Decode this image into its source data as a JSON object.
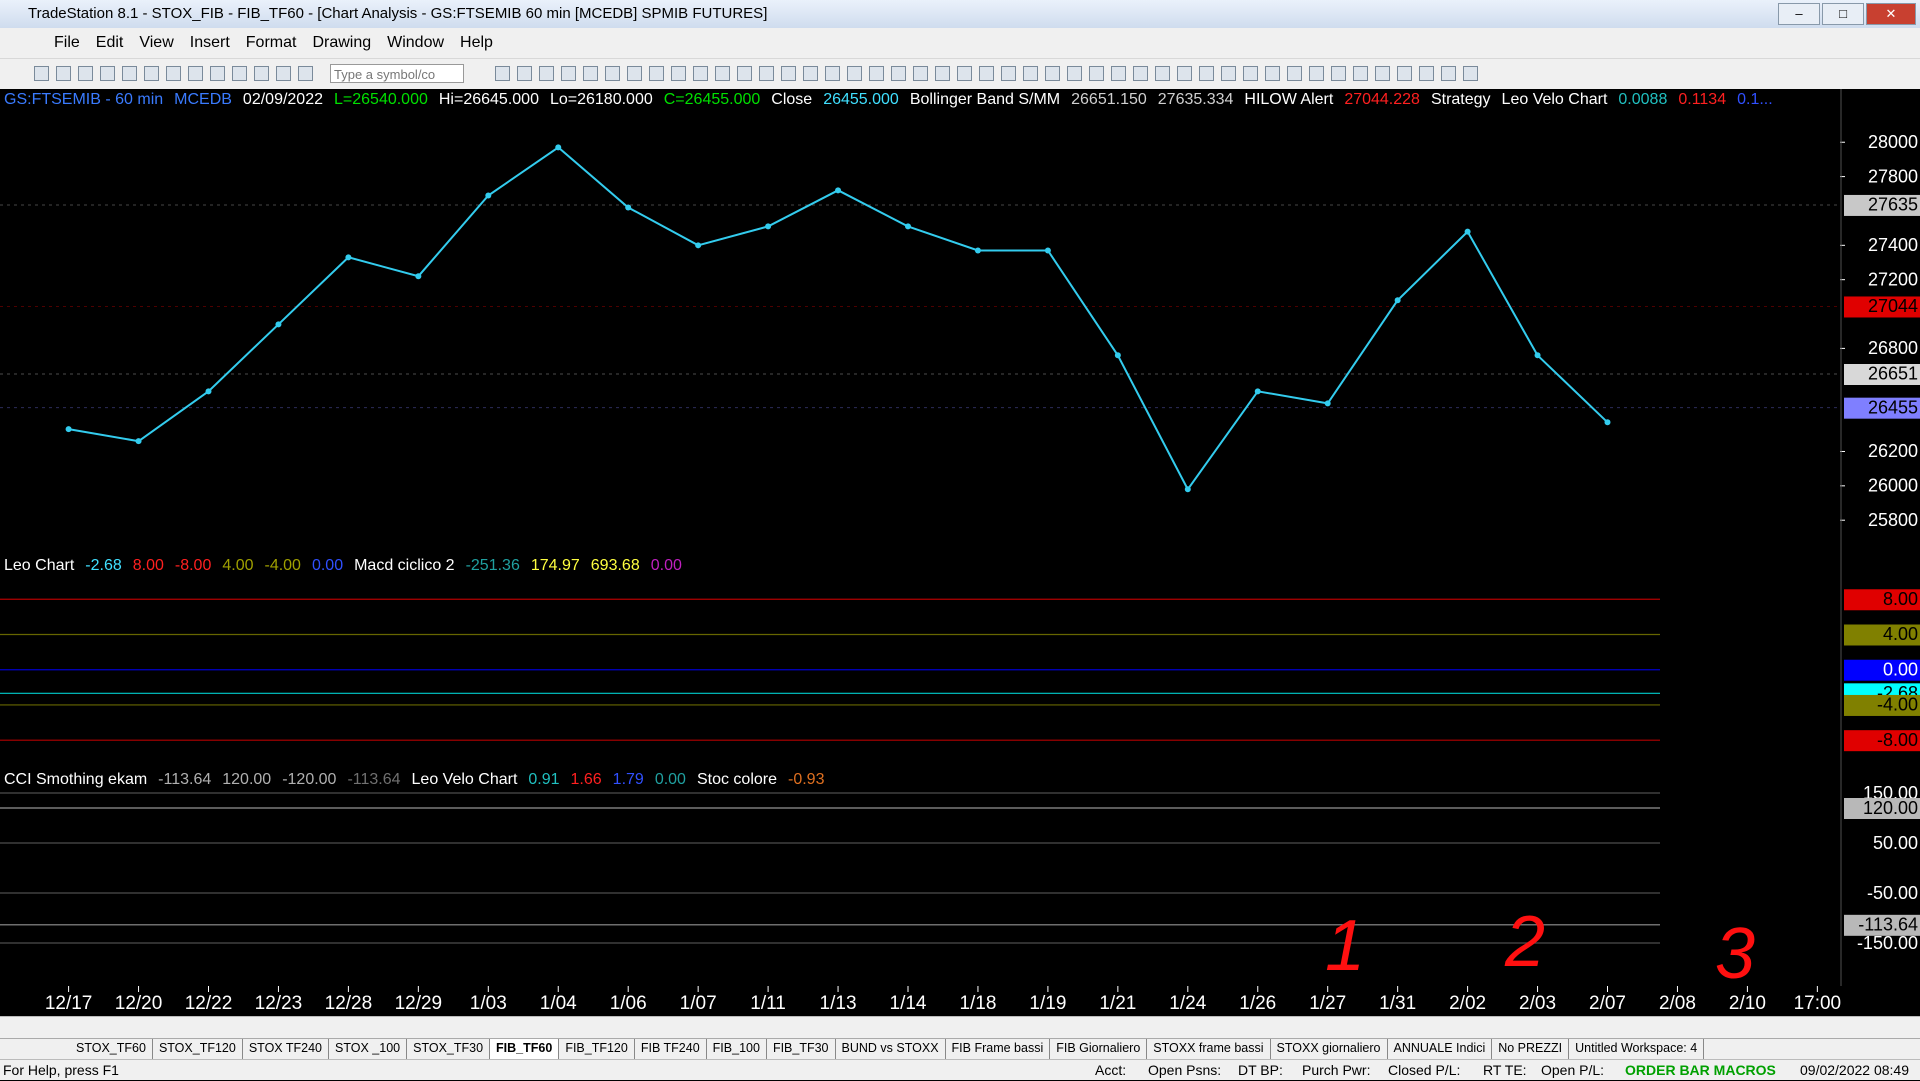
{
  "window": {
    "title": "TradeStation 8.1 - STOX_FIB - FIB_TF60 - [Chart Analysis - GS:FTSEMIB  60 min  [MCEDB] SPMIB FUTURES]",
    "menu": [
      "File",
      "Edit",
      "View",
      "Insert",
      "Format",
      "Drawing",
      "Window",
      "Help"
    ],
    "symbol_box": "Type a symbol/co"
  },
  "chart_data": [
    {
      "type": "line",
      "header": [
        {
          "text": "GS:FTSEMIB - 60 min",
          "color": "#3a7bff"
        },
        {
          "text": "MCEDB",
          "color": "#3a7bff"
        },
        {
          "text": "02/09/2022",
          "color": "#ffffff"
        },
        {
          "text": "L=26540.000",
          "color": "#00e000"
        },
        {
          "text": "Hi=26645.000",
          "color": "#ffffff"
        },
        {
          "text": "Lo=26180.000",
          "color": "#ffffff"
        },
        {
          "text": "C=26455.000",
          "color": "#00e000"
        },
        {
          "text": "Close",
          "color": "#ffffff"
        },
        {
          "text": "26455.000",
          "color": "#40e0ff"
        },
        {
          "text": "Bollinger Band S/MM",
          "color": "#ffffff"
        },
        {
          "text": "26651.150",
          "color": "#d0d0d0"
        },
        {
          "text": "27635.334",
          "color": "#d0d0d0"
        },
        {
          "text": "HILOW Alert",
          "color": "#ffffff"
        },
        {
          "text": "27044.228",
          "color": "#ff2020"
        },
        {
          "text": "Strategy",
          "color": "#ffffff"
        },
        {
          "text": "Leo Velo Chart",
          "color": "#ffffff"
        },
        {
          "text": "0.0088",
          "color": "#20c0c0"
        },
        {
          "text": "0.1134",
          "color": "#ff2020"
        },
        {
          "text": "0.1...",
          "color": "#3050ff"
        }
      ],
      "categories": [
        "12/17",
        "12/20",
        "12/22",
        "12/23",
        "12/28",
        "12/29",
        "1/03",
        "1/04",
        "1/06",
        "1/07",
        "1/11",
        "1/13",
        "1/14",
        "1/18",
        "1/19",
        "1/21",
        "1/24",
        "1/26",
        "1/27",
        "1/31",
        "2/02",
        "2/03",
        "2/07",
        "2/08",
        "2/10",
        "17:00"
      ],
      "series": [
        {
          "color": "#33ccee",
          "values": [
            26330,
            26260,
            26550,
            26940,
            27330,
            27220,
            27690,
            27970,
            27620,
            27400,
            27510,
            27720,
            27510,
            27370,
            27370,
            26760,
            25980,
            26550,
            26480,
            27080,
            27480,
            26760,
            26370,
            null,
            null,
            null
          ]
        }
      ],
      "ylim": [
        25580,
        28240
      ],
      "yticks": [
        28000,
        27800,
        27400,
        27200,
        26800,
        26200,
        26000,
        25800
      ],
      "markers": [
        {
          "value": 27635,
          "color": "#c8c8c8"
        },
        {
          "value": 27044,
          "color": "#e00000"
        },
        {
          "value": 26651,
          "color": "#d8d8d8"
        },
        {
          "value": 26455,
          "color": "#7f7fff"
        }
      ]
    },
    {
      "type": "levels",
      "header": [
        {
          "text": "Leo Chart",
          "color": "#ffffff"
        },
        {
          "text": "-2.68",
          "color": "#40e0ff"
        },
        {
          "text": "8.00",
          "color": "#ff2020"
        },
        {
          "text": "-8.00",
          "color": "#ff2020"
        },
        {
          "text": "4.00",
          "color": "#a0a000"
        },
        {
          "text": "-4.00",
          "color": "#a0a000"
        },
        {
          "text": "0.00",
          "color": "#3050ff"
        },
        {
          "text": "Macd ciclico 2",
          "color": "#ffffff"
        },
        {
          "text": "-251.36",
          "color": "#20a0a0"
        },
        {
          "text": "174.97",
          "color": "#ffff40"
        },
        {
          "text": "693.68",
          "color": "#ffff40"
        },
        {
          "text": "0.00",
          "color": "#c020c0"
        }
      ],
      "ylim": [
        -11.5,
        12.8
      ],
      "yticks": [
        {
          "value": 8,
          "label": "8.00"
        },
        {
          "value": 4,
          "label": "4.00"
        },
        {
          "value": 0,
          "label": "0.00"
        },
        {
          "value": -2.68,
          "label": "-2.68"
        },
        {
          "value": -4,
          "label": "-4.00"
        },
        {
          "value": -8,
          "label": "-8.00"
        }
      ],
      "tick_colors": [
        "#e00000",
        "#808000",
        "#0000ff",
        "#00ffff",
        "#808000",
        "#e00000"
      ]
    },
    {
      "type": "levels",
      "header": [
        {
          "text": "CCI Smothing ekam",
          "color": "#ffffff"
        },
        {
          "text": "-113.64",
          "color": "#b0b0b0"
        },
        {
          "text": "120.00",
          "color": "#b0b0b0"
        },
        {
          "text": "-120.00",
          "color": "#b0b0b0"
        },
        {
          "text": "-113.64",
          "color": "#707070"
        },
        {
          "text": "Leo Velo Chart",
          "color": "#ffffff"
        },
        {
          "text": "0.91",
          "color": "#20c0c0"
        },
        {
          "text": "1.66",
          "color": "#ff2020"
        },
        {
          "text": "1.79",
          "color": "#3050ff"
        },
        {
          "text": "0.00",
          "color": "#20a0a0"
        },
        {
          "text": "Stoc colore",
          "color": "#ffffff"
        },
        {
          "text": "-0.93",
          "color": "#e07020"
        }
      ],
      "ylim": [
        -236,
        194
      ],
      "yticks": [
        {
          "value": 150,
          "label": "150.00"
        },
        {
          "value": 120,
          "label": "120.00"
        },
        {
          "value": 50,
          "label": "50.00"
        },
        {
          "value": -50,
          "label": "-50.00"
        },
        {
          "value": -113.64,
          "label": "-113.64"
        },
        {
          "value": -150,
          "label": "-150.00"
        }
      ],
      "tick_colors": [
        null,
        "#b8b8b8",
        null,
        null,
        "#b8b8b8",
        null
      ]
    }
  ],
  "annotations": [
    {
      "text": "1",
      "color": "#ff1010"
    },
    {
      "text": "2",
      "color": "#ff1010"
    },
    {
      "text": "3",
      "color": "#ff1010"
    }
  ],
  "tabs": [
    "STOX_TF60",
    "STOX_TF120",
    "STOX TF240",
    "STOX _100",
    "STOX_TF30",
    "FIB_TF60",
    "FIB_TF120",
    "FIB TF240",
    "FIB_100",
    "FIB_TF30",
    "BUND vs STOXX",
    "FIB Frame bassi",
    "FIB Giornaliero",
    "STOXX frame bassi",
    "STOXX giornaliero",
    "ANNUALE Indici",
    "No PREZZI",
    "Untitled Workspace: 4"
  ],
  "active_tab": 5,
  "status": {
    "help": "For Help, press F1",
    "fields": [
      "Acct:",
      "Open Psns:",
      "DT BP:",
      "Purch Pwr:",
      "Closed P/L:",
      "RT TE:",
      "Open P/L:"
    ],
    "macros": "ORDER BAR MACROS",
    "datetime": "09/02/2022 08:49"
  }
}
